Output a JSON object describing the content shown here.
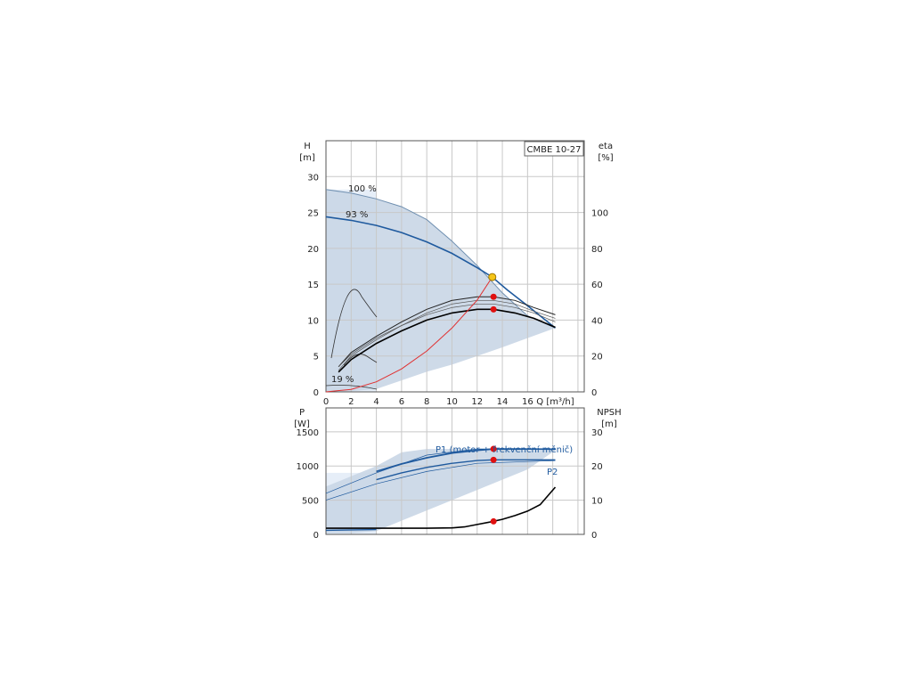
{
  "chart_data": [
    {
      "type": "line",
      "name_box": "CMBE 10-27",
      "x_axis": {
        "label": "Q [m³/h]",
        "ticks": [
          0,
          2,
          4,
          6,
          8,
          10,
          12,
          14,
          16
        ],
        "range": [
          0,
          20.5
        ]
      },
      "y_left": {
        "label_top": "H",
        "label_unit": "[m]",
        "ticks": [
          0,
          5,
          10,
          15,
          20,
          25,
          30
        ],
        "range": [
          0,
          35
        ]
      },
      "y_right": {
        "label_top": "eta",
        "label_unit": "[%]",
        "ticks": [
          0,
          20,
          40,
          60,
          80,
          100
        ],
        "range": [
          0,
          140
        ]
      },
      "curve_labels": [
        "100 %",
        "93 %",
        "19 %"
      ],
      "head_100": [
        [
          0,
          28.2
        ],
        [
          2,
          27.7
        ],
        [
          4,
          26.9
        ],
        [
          6,
          25.8
        ],
        [
          8,
          24.0
        ],
        [
          10,
          21.0
        ],
        [
          12,
          17.6
        ],
        [
          14,
          13.8
        ],
        [
          16,
          10.6
        ],
        [
          18.2,
          8.9
        ]
      ],
      "head_93": [
        [
          0,
          24.4
        ],
        [
          2,
          23.9
        ],
        [
          4,
          23.2
        ],
        [
          6,
          22.2
        ],
        [
          8,
          20.9
        ],
        [
          10,
          19.3
        ],
        [
          12,
          17.3
        ],
        [
          13.2,
          16.0
        ],
        [
          14.4,
          14.2
        ],
        [
          16,
          12.0
        ],
        [
          18.2,
          8.9
        ]
      ],
      "eta_upper": [
        [
          1,
          14
        ],
        [
          2,
          22
        ],
        [
          4,
          31
        ],
        [
          6,
          39
        ],
        [
          8,
          46
        ],
        [
          10,
          51
        ],
        [
          12,
          53
        ],
        [
          13.3,
          53
        ],
        [
          15,
          51
        ],
        [
          16.5,
          47
        ],
        [
          18.2,
          43
        ]
      ],
      "eta_lower": [
        [
          1,
          11
        ],
        [
          2,
          18
        ],
        [
          4,
          27
        ],
        [
          6,
          34
        ],
        [
          8,
          40
        ],
        [
          10,
          44
        ],
        [
          12,
          46
        ],
        [
          13.3,
          46
        ],
        [
          15,
          44
        ],
        [
          16.5,
          41
        ],
        [
          18.2,
          36
        ]
      ],
      "system_curve": [
        [
          0,
          0
        ],
        [
          2,
          0.35
        ],
        [
          4,
          1.4
        ],
        [
          6,
          3.2
        ],
        [
          8,
          5.7
        ],
        [
          10,
          8.9
        ],
        [
          12,
          12.8
        ],
        [
          13.2,
          16.0
        ]
      ],
      "duty_point": {
        "q": 13.2,
        "h": 16.0
      },
      "eta_points": [
        {
          "q": 13.3,
          "eta": 53
        },
        {
          "q": 13.3,
          "eta": 46
        }
      ]
    },
    {
      "type": "line",
      "x_axis": {
        "ticks": [
          0,
          2,
          4,
          6,
          8,
          10,
          12,
          14,
          16
        ],
        "range": [
          0,
          20.5
        ]
      },
      "y_left": {
        "label_top": "P",
        "label_unit": "[W]",
        "ticks": [
          0,
          500,
          1000,
          1500
        ],
        "range": [
          0,
          1850
        ]
      },
      "y_right": {
        "label_top": "NPSH",
        "label_unit": "[m]",
        "ticks": [
          0,
          10,
          20,
          30
        ],
        "range": [
          0,
          37
        ]
      },
      "series": [
        {
          "name": "P1 (motor + frekvenční měnič)",
          "values": [
            [
              0,
              650
            ],
            [
              2,
              800
            ],
            [
              4,
              920
            ],
            [
              6,
              1030
            ],
            [
              8,
              1120
            ],
            [
              10,
              1190
            ],
            [
              12,
              1230
            ],
            [
              13.3,
              1250
            ],
            [
              15,
              1250
            ],
            [
              18.2,
              1245
            ]
          ]
        },
        {
          "name": "P2",
          "values": [
            [
              0,
              560
            ],
            [
              2,
              680
            ],
            [
              4,
              800
            ],
            [
              6,
              900
            ],
            [
              8,
              980
            ],
            [
              10,
              1040
            ],
            [
              12,
              1080
            ],
            [
              13.3,
              1090
            ],
            [
              15,
              1090
            ],
            [
              18.2,
              1090
            ]
          ]
        }
      ],
      "npsh": [
        [
          0,
          1.8
        ],
        [
          4,
          1.8
        ],
        [
          8,
          1.8
        ],
        [
          10,
          1.9
        ],
        [
          11,
          2.2
        ],
        [
          12,
          2.9
        ],
        [
          13,
          3.6
        ],
        [
          14,
          4.4
        ],
        [
          15,
          5.5
        ],
        [
          16,
          6.8
        ],
        [
          17,
          8.7
        ],
        [
          18.2,
          13.8
        ]
      ],
      "power_points": [
        {
          "q": 13.3,
          "p": 1250
        },
        {
          "q": 13.3,
          "p": 1090
        }
      ],
      "npsh_point": {
        "q": 13.3,
        "npsh": 3.8
      }
    }
  ]
}
